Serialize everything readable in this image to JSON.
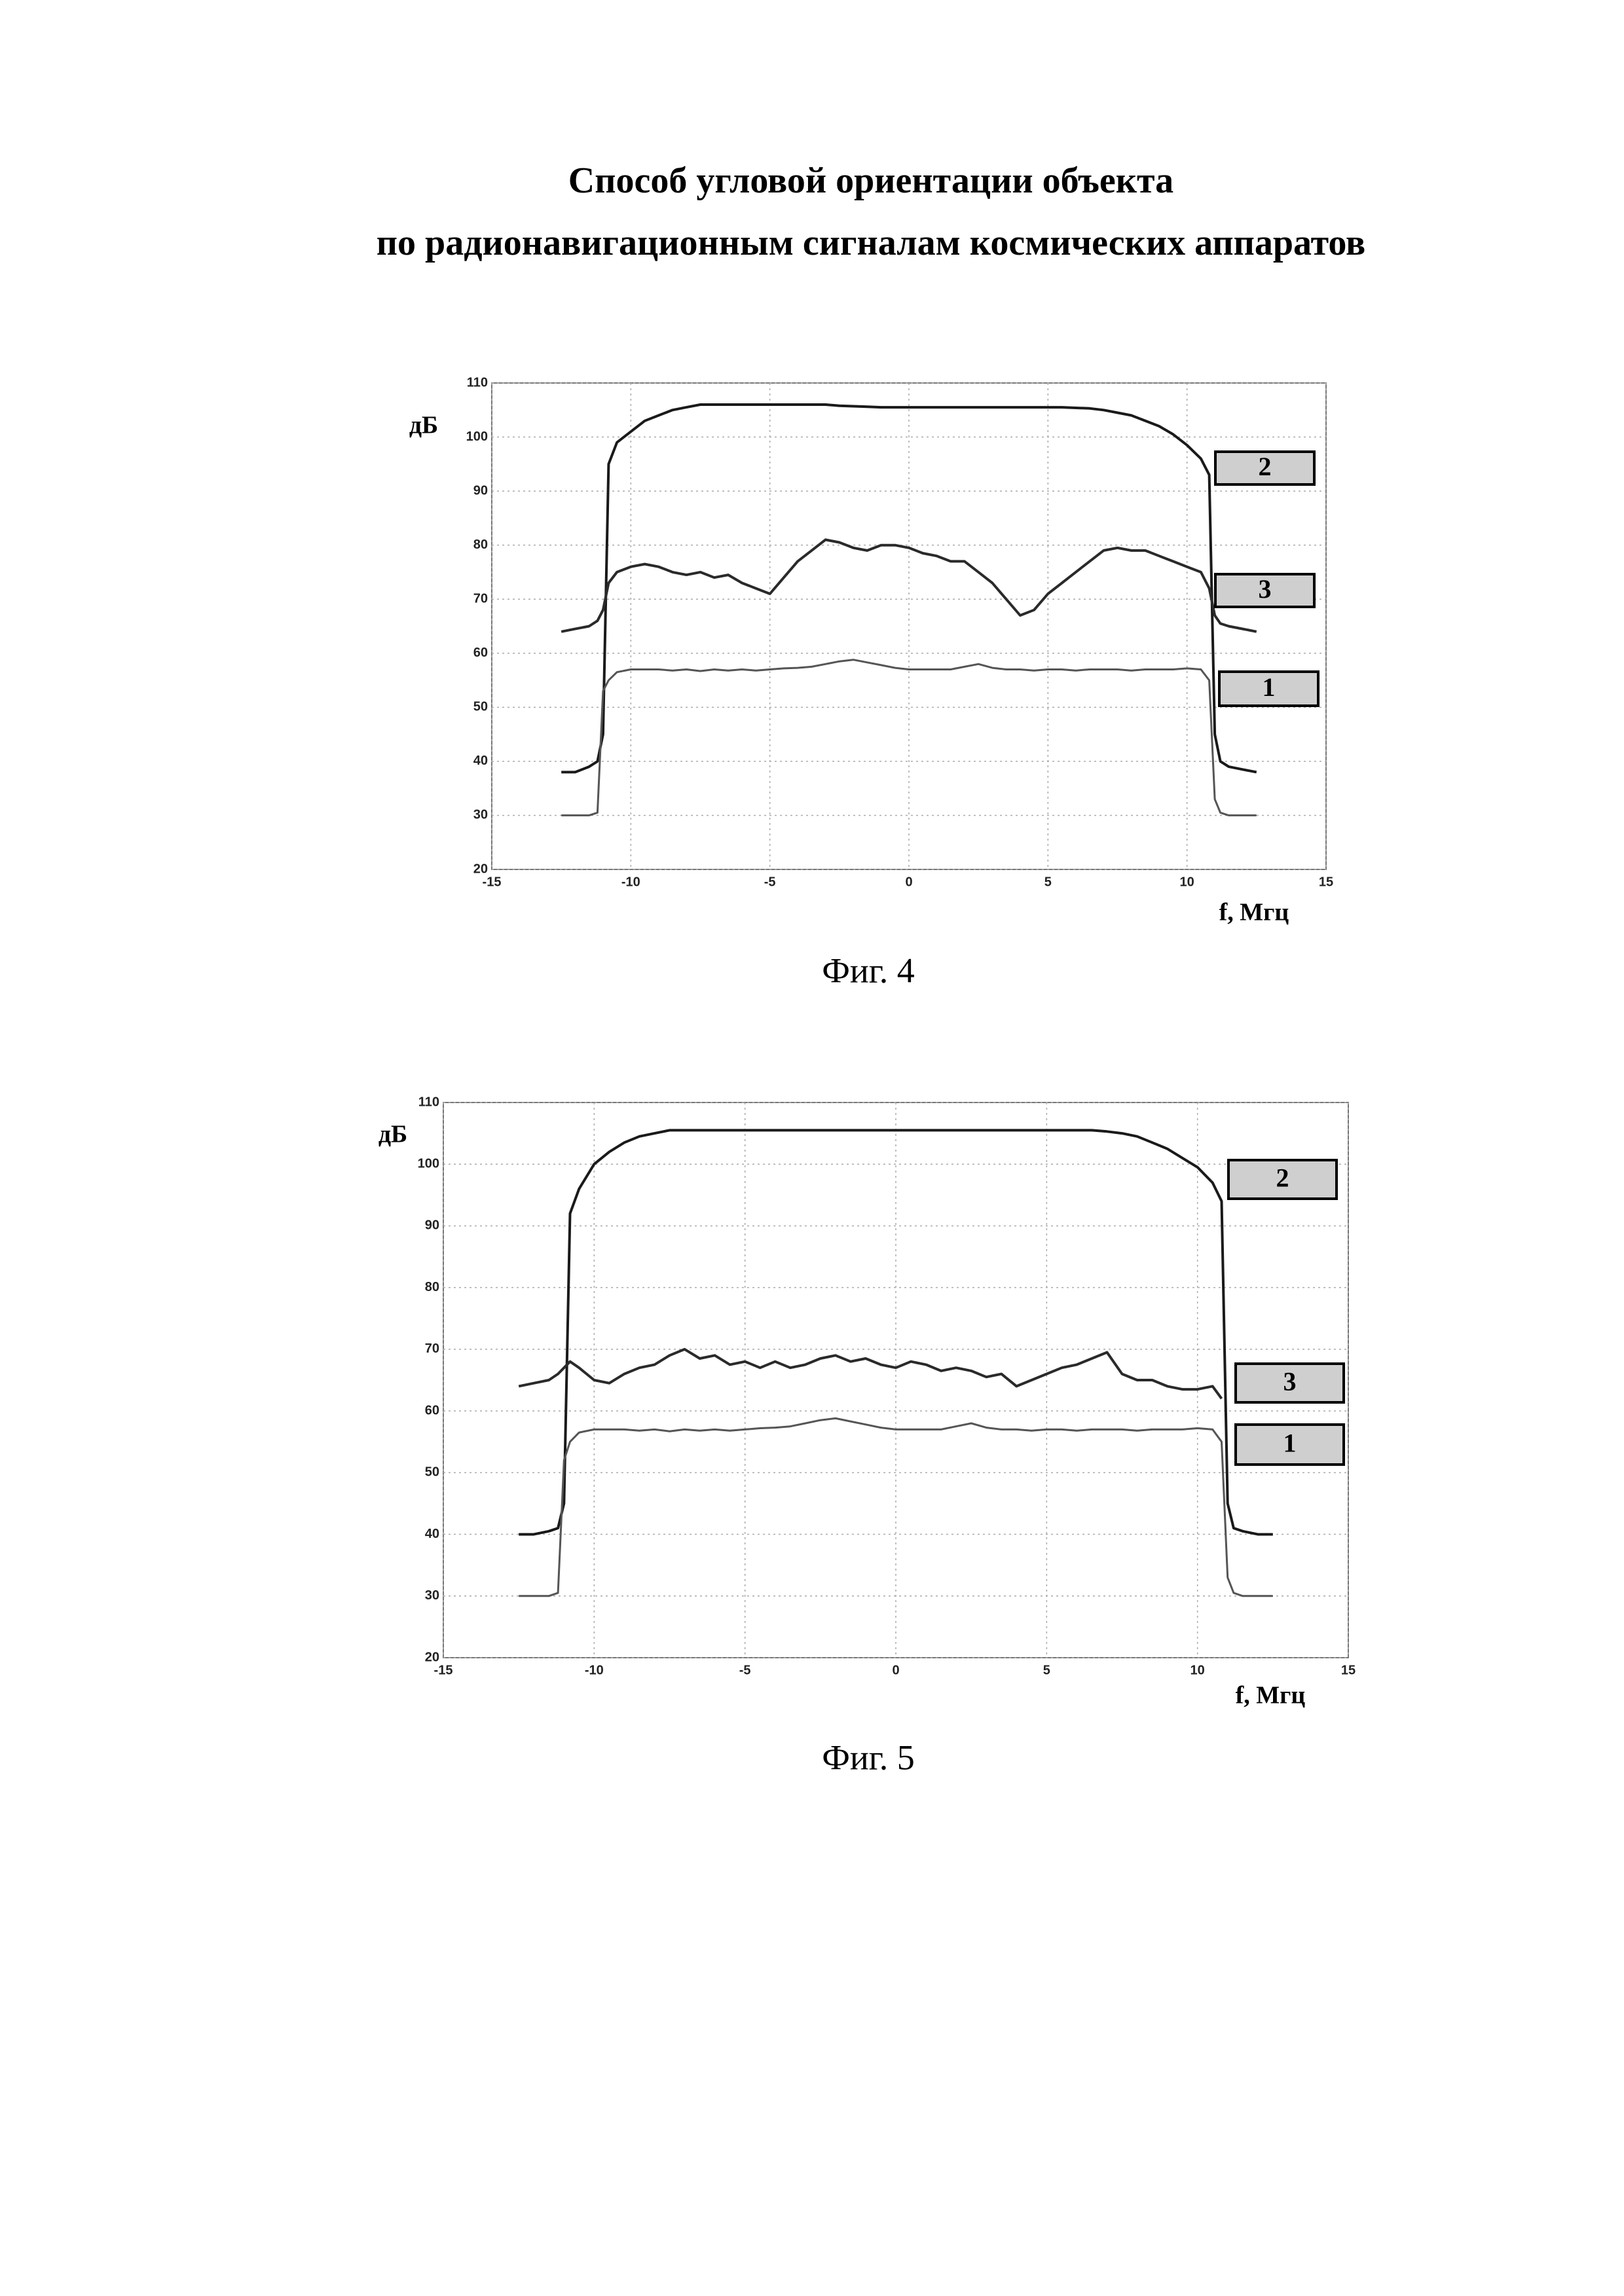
{
  "header": {
    "lines": [
      "Способ угловой ориентации объекта",
      "по радионавигационным сигналам космических аппаратов"
    ]
  },
  "chart_data": [
    {
      "type": "line",
      "caption": "Фиг. 4",
      "y_label": "дБ",
      "x_label": "f, Мгц",
      "x": [
        -12.5,
        -12,
        -11.5,
        -11.2,
        -11,
        -10.8,
        -10.5,
        -10,
        -9.5,
        -9,
        -8.5,
        -8,
        -7.5,
        -7,
        -6.5,
        -6,
        -5.5,
        -5,
        -4.5,
        -4,
        -3.5,
        -3,
        -2.5,
        -2,
        -1.5,
        -1,
        -0.5,
        0,
        0.5,
        1,
        1.5,
        2,
        2.5,
        3,
        3.5,
        4,
        4.5,
        5,
        5.5,
        6,
        6.5,
        7,
        7.5,
        8,
        8.5,
        9,
        9.5,
        10,
        10.5,
        10.8,
        11,
        11.2,
        11.5,
        12,
        12.5
      ],
      "series": [
        {
          "name": "2",
          "color": "#1a1a1a",
          "values": [
            38,
            38,
            39,
            40,
            45,
            95,
            99,
            101,
            103,
            104,
            105,
            105.5,
            106,
            106,
            106,
            106,
            106,
            106,
            106,
            106,
            106,
            106,
            105.8,
            105.7,
            105.6,
            105.5,
            105.5,
            105.5,
            105.5,
            105.5,
            105.5,
            105.5,
            105.5,
            105.5,
            105.5,
            105.5,
            105.5,
            105.5,
            105.5,
            105.4,
            105.3,
            105,
            104.5,
            104,
            103,
            102,
            100.5,
            98.5,
            96,
            93,
            45,
            40,
            39,
            38.5,
            38
          ]
        },
        {
          "name": "3",
          "color": "#2a2a2a",
          "values": [
            64,
            64.5,
            65,
            66,
            68,
            73,
            75,
            76,
            76.5,
            76,
            75,
            74.5,
            75,
            74,
            74.5,
            73,
            72,
            71,
            74,
            77,
            79,
            81,
            80.5,
            79.5,
            79,
            80,
            80,
            79.5,
            78.5,
            78,
            77,
            77,
            75,
            73,
            70,
            67,
            68,
            71,
            73,
            75,
            77,
            79,
            79.5,
            79,
            79,
            78,
            77,
            76,
            75,
            72,
            67,
            65.5,
            65,
            64.5,
            64
          ]
        },
        {
          "name": "1",
          "color": "#555555",
          "values": [
            30,
            30,
            30,
            30.5,
            53,
            55,
            56.5,
            57,
            57,
            57,
            56.8,
            57,
            56.7,
            57,
            56.8,
            57,
            56.8,
            57,
            57.2,
            57.3,
            57.5,
            58,
            58.5,
            58.8,
            58.3,
            57.8,
            57.3,
            57,
            57,
            57,
            57,
            57.5,
            58,
            57.3,
            57,
            57,
            56.8,
            57,
            57,
            56.8,
            57,
            57,
            57,
            56.8,
            57,
            57,
            57,
            57.2,
            57,
            55,
            33,
            30.5,
            30,
            30,
            30
          ]
        }
      ],
      "xlim": [
        -15,
        15
      ],
      "ylim": [
        20,
        110
      ],
      "xticks": [
        -15,
        -10,
        -5,
        0,
        5,
        10,
        15
      ],
      "yticks": [
        20,
        30,
        40,
        50,
        60,
        70,
        80,
        90,
        100,
        110
      ],
      "grid": true
    },
    {
      "type": "line",
      "caption": "Фиг. 5",
      "y_label": "дБ",
      "x_label": "f, Мгц",
      "x": [
        -12.5,
        -12,
        -11.5,
        -11.2,
        -11,
        -10.8,
        -10.5,
        -10,
        -9.5,
        -9,
        -8.5,
        -8,
        -7.5,
        -7,
        -6.5,
        -6,
        -5.5,
        -5,
        -4.5,
        -4,
        -3.5,
        -3,
        -2.5,
        -2,
        -1.5,
        -1,
        -0.5,
        0,
        0.5,
        1,
        1.5,
        2,
        2.5,
        3,
        3.5,
        4,
        4.5,
        5,
        5.5,
        6,
        6.5,
        7,
        7.5,
        8,
        8.5,
        9,
        9.5,
        10,
        10.5,
        10.8,
        11,
        11.2,
        11.5,
        12,
        12.5
      ],
      "series": [
        {
          "name": "2",
          "color": "#1a1a1a",
          "values": [
            40,
            40,
            40.5,
            41,
            45,
            92,
            96,
            100,
            102,
            103.5,
            104.5,
            105,
            105.5,
            105.5,
            105.5,
            105.5,
            105.5,
            105.5,
            105.5,
            105.5,
            105.5,
            105.5,
            105.5,
            105.5,
            105.5,
            105.5,
            105.5,
            105.5,
            105.5,
            105.5,
            105.5,
            105.5,
            105.5,
            105.5,
            105.5,
            105.5,
            105.5,
            105.5,
            105.5,
            105.5,
            105.5,
            105.3,
            105,
            104.5,
            103.5,
            102.5,
            101,
            99.5,
            97,
            94,
            45,
            41,
            40.5,
            40,
            40
          ]
        },
        {
          "name": "3",
          "color": "#2a2a2a",
          "values": [
            64,
            64.5,
            65,
            66,
            67,
            68,
            67,
            65,
            64.5,
            66,
            67,
            67.5,
            69,
            70,
            68.5,
            69,
            67.5,
            68,
            67,
            68,
            67,
            67.5,
            68.5,
            69,
            68,
            68.5,
            67.5,
            67,
            68,
            67.5,
            66.5,
            67,
            66.5,
            65.5,
            66,
            64,
            65,
            66,
            67,
            67.5,
            68.5,
            69.5,
            66,
            65,
            65,
            64,
            63.5,
            63.5,
            64,
            62,
            null,
            null,
            null,
            null,
            null
          ]
        },
        {
          "name": "1",
          "color": "#555555",
          "values": [
            30,
            30,
            30,
            30.5,
            52,
            55,
            56.5,
            57,
            57,
            57,
            56.8,
            57,
            56.7,
            57,
            56.8,
            57,
            56.8,
            57,
            57.2,
            57.3,
            57.5,
            58,
            58.5,
            58.8,
            58.3,
            57.8,
            57.3,
            57,
            57,
            57,
            57,
            57.5,
            58,
            57.3,
            57,
            57,
            56.8,
            57,
            57,
            56.8,
            57,
            57,
            57,
            56.8,
            57,
            57,
            57,
            57.2,
            57,
            55,
            33,
            30.5,
            30,
            30,
            30
          ]
        }
      ],
      "xlim": [
        -15,
        15
      ],
      "ylim": [
        20,
        110
      ],
      "xticks": [
        -15,
        -10,
        -5,
        0,
        5,
        10,
        15
      ],
      "yticks": [
        20,
        30,
        40,
        50,
        60,
        70,
        80,
        90,
        100,
        110
      ],
      "grid": true
    }
  ]
}
